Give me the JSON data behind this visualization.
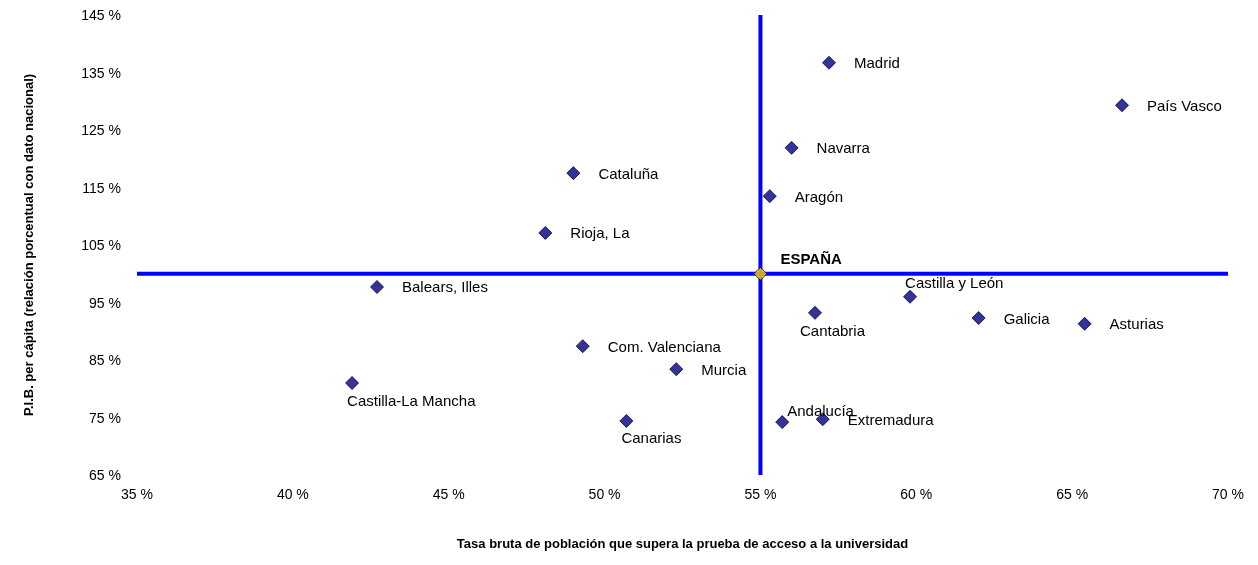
{
  "chart_data": {
    "type": "scatter",
    "xlabel": "Tasa bruta de población que supera la prueba de acceso a la universidad",
    "ylabel": "P.I.B. per cápita (relación porcentual con dato nacional)",
    "series": [
      {
        "color": "#000080",
        "x": [
          57.2,
          66.6,
          56.0,
          49.0,
          55.3,
          48.1,
          42.7,
          59.8,
          56.75,
          62.0,
          65.4,
          49.3,
          52.3,
          41.9,
          50.7,
          55.7,
          57.0
        ],
        "values": [
          136.7,
          129.3,
          121.9,
          117.5,
          113.5,
          107.1,
          97.7,
          96.0,
          93.2,
          92.3,
          91.3,
          87.4,
          83.4,
          81.0,
          74.4,
          74.2,
          74.7
        ]
      },
      {
        "color": "#ffcc00",
        "x": [
          55.0
        ],
        "values": [
          100
        ]
      }
    ],
    "annotations": [
      {
        "text": "Madrid",
        "x": 57.2,
        "y": 136.7
      },
      {
        "text": "País Vasco",
        "x": 66.6,
        "y": 129.3
      },
      {
        "text": "Navarra",
        "x": 56.0,
        "y": 121.9
      },
      {
        "text": "Cataluña",
        "x": 49.0,
        "y": 117.5
      },
      {
        "text": "Aragón",
        "x": 55.3,
        "y": 113.5
      },
      {
        "text": "Rioja, La",
        "x": 48.1,
        "y": 107.1
      },
      {
        "text": "Balears, Illes",
        "x": 42.7,
        "y": 97.7
      },
      {
        "text": "Castilla y León",
        "x": 59.8,
        "y": 96.0
      },
      {
        "text": "Cantabria",
        "x": 56.75,
        "y": 93.2
      },
      {
        "text": "Galicia",
        "x": 62.0,
        "y": 92.3
      },
      {
        "text": "Asturias",
        "x": 65.4,
        "y": 91.3
      },
      {
        "text": "Com. Valenciana",
        "x": 49.3,
        "y": 87.4
      },
      {
        "text": "Murcia",
        "x": 52.3,
        "y": 83.4
      },
      {
        "text": "Castilla-La Mancha",
        "x": 41.9,
        "y": 81.0
      },
      {
        "text": "Canarias",
        "x": 50.7,
        "y": 74.4
      },
      {
        "text": "Andalucía",
        "x": 55.7,
        "y": 74.2
      },
      {
        "text": "Extremadura",
        "x": 57.0,
        "y": 74.7
      },
      {
        "text": "ESPAÑA",
        "x": 55.0,
        "y": 100
      }
    ],
    "ref_lines": [
      {
        "axis": "x",
        "value": 55,
        "color": "#0000ff",
        "line_style": "solid"
      },
      {
        "axis": "y",
        "value": 100,
        "color": "#0000ff",
        "line_style": "solid"
      }
    ],
    "xlim": [
      35,
      70
    ],
    "xticks": [
      {
        "value": 35,
        "label": "35 %"
      },
      {
        "value": 40,
        "label": "40 %"
      },
      {
        "value": 45,
        "label": "45 %"
      },
      {
        "value": 50,
        "label": "50 %"
      },
      {
        "value": 55,
        "label": "55 %"
      },
      {
        "value": 60,
        "label": "60 %"
      },
      {
        "value": 65,
        "label": "65 %"
      },
      {
        "value": 70,
        "label": "70 %"
      }
    ],
    "ylim": [
      65,
      145
    ],
    "yticks": [
      {
        "value": 65,
        "label": "65 %"
      },
      {
        "value": 75,
        "label": "75 %"
      },
      {
        "value": 85,
        "label": "85 %"
      },
      {
        "value": 95,
        "label": "95 %"
      },
      {
        "value": 105,
        "label": "105 %"
      },
      {
        "value": 115,
        "label": "115 %"
      },
      {
        "value": 125,
        "label": "125 %"
      },
      {
        "value": 135,
        "label": "135 %"
      },
      {
        "value": 145,
        "label": "145 %"
      }
    ],
    "grid": false,
    "marker": "diamond"
  }
}
